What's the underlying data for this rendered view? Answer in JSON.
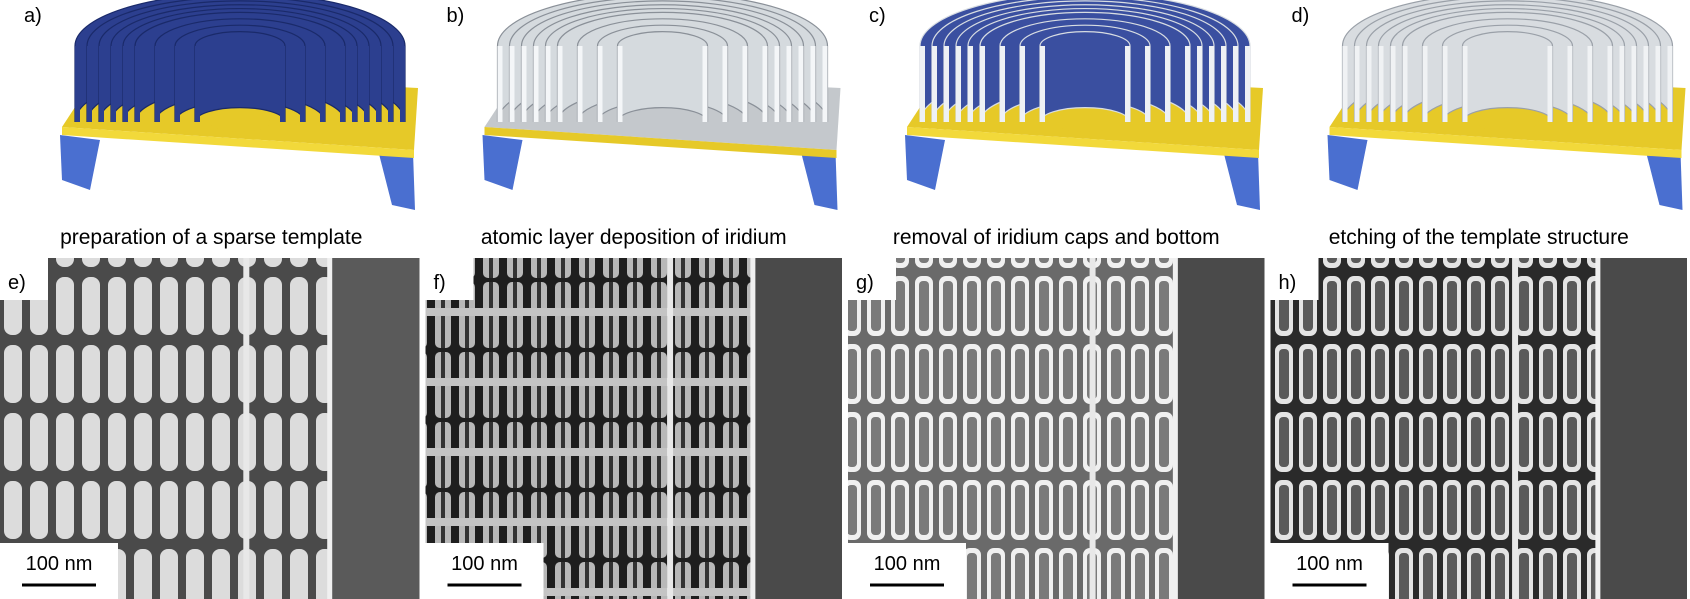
{
  "panels": [
    {
      "label": "a)",
      "caption": "preparation of a sparse template"
    },
    {
      "label": "b)",
      "caption": "atomic layer deposition of iridium"
    },
    {
      "label": "c)",
      "caption": "removal of iridium caps and bottom"
    },
    {
      "label": "d)",
      "caption": "etching of the template structure"
    }
  ],
  "micrographs": [
    {
      "label": "e)",
      "scale_bar": "100 nm"
    },
    {
      "label": "f)",
      "scale_bar": "100 nm"
    },
    {
      "label": "g)",
      "scale_bar": "100 nm"
    },
    {
      "label": "h)",
      "scale_bar": "100 nm"
    }
  ]
}
